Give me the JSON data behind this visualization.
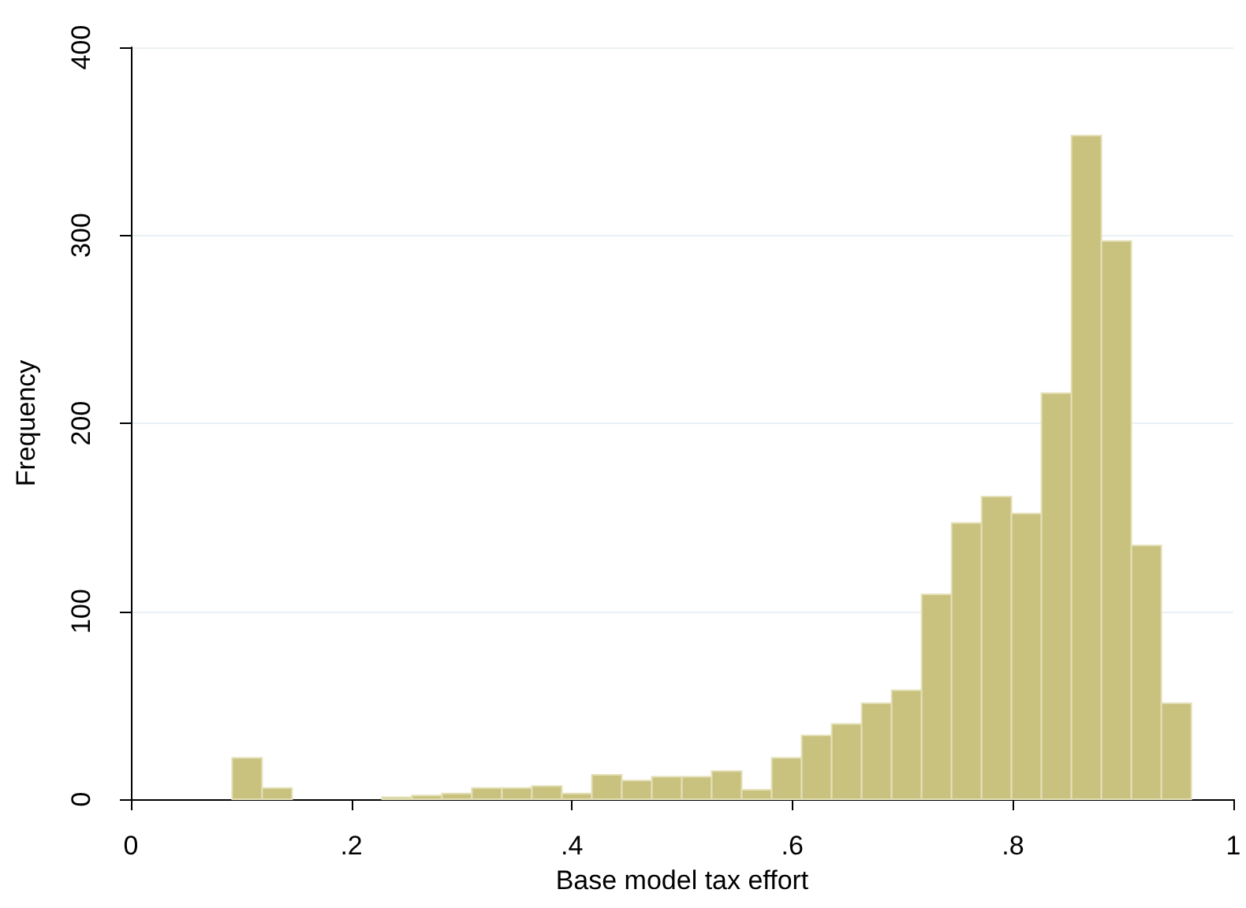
{
  "chart_data": {
    "type": "histogram",
    "xlabel": "Base model tax effort",
    "ylabel": "Frequency",
    "color": "#c9c27f",
    "bins": [
      0.0918,
      0.119,
      0.1462,
      0.1734,
      0.2006,
      0.2278,
      0.2549,
      0.2821,
      0.3093,
      0.3365,
      0.3637,
      0.3909,
      0.4181,
      0.4453,
      0.4725,
      0.4997,
      0.5268,
      0.554,
      0.5812,
      0.6084,
      0.6356,
      0.6628,
      0.69,
      0.7172,
      0.7444,
      0.7716,
      0.7987,
      0.8259,
      0.8531,
      0.8803,
      0.9075,
      0.9347,
      0.9619
    ],
    "values": [
      22,
      6,
      0,
      0,
      0,
      1,
      2,
      3,
      6,
      6,
      7,
      3,
      13,
      10,
      12,
      12,
      15,
      5,
      22,
      34,
      40,
      51,
      58,
      109,
      147,
      161,
      152,
      216,
      353,
      297,
      135,
      51
    ],
    "xlim": [
      0,
      1
    ],
    "xticks": [
      0,
      {
        "value": 0.2,
        "label": ".2"
      },
      {
        "value": 0.4,
        "label": ".4"
      },
      {
        "value": 0.6,
        "label": ".6"
      },
      {
        "value": 0.8,
        "label": ".8"
      },
      1
    ],
    "ylim": [
      0,
      400
    ],
    "yticks": [
      0,
      100,
      200,
      300,
      400
    ],
    "grid": "y"
  }
}
